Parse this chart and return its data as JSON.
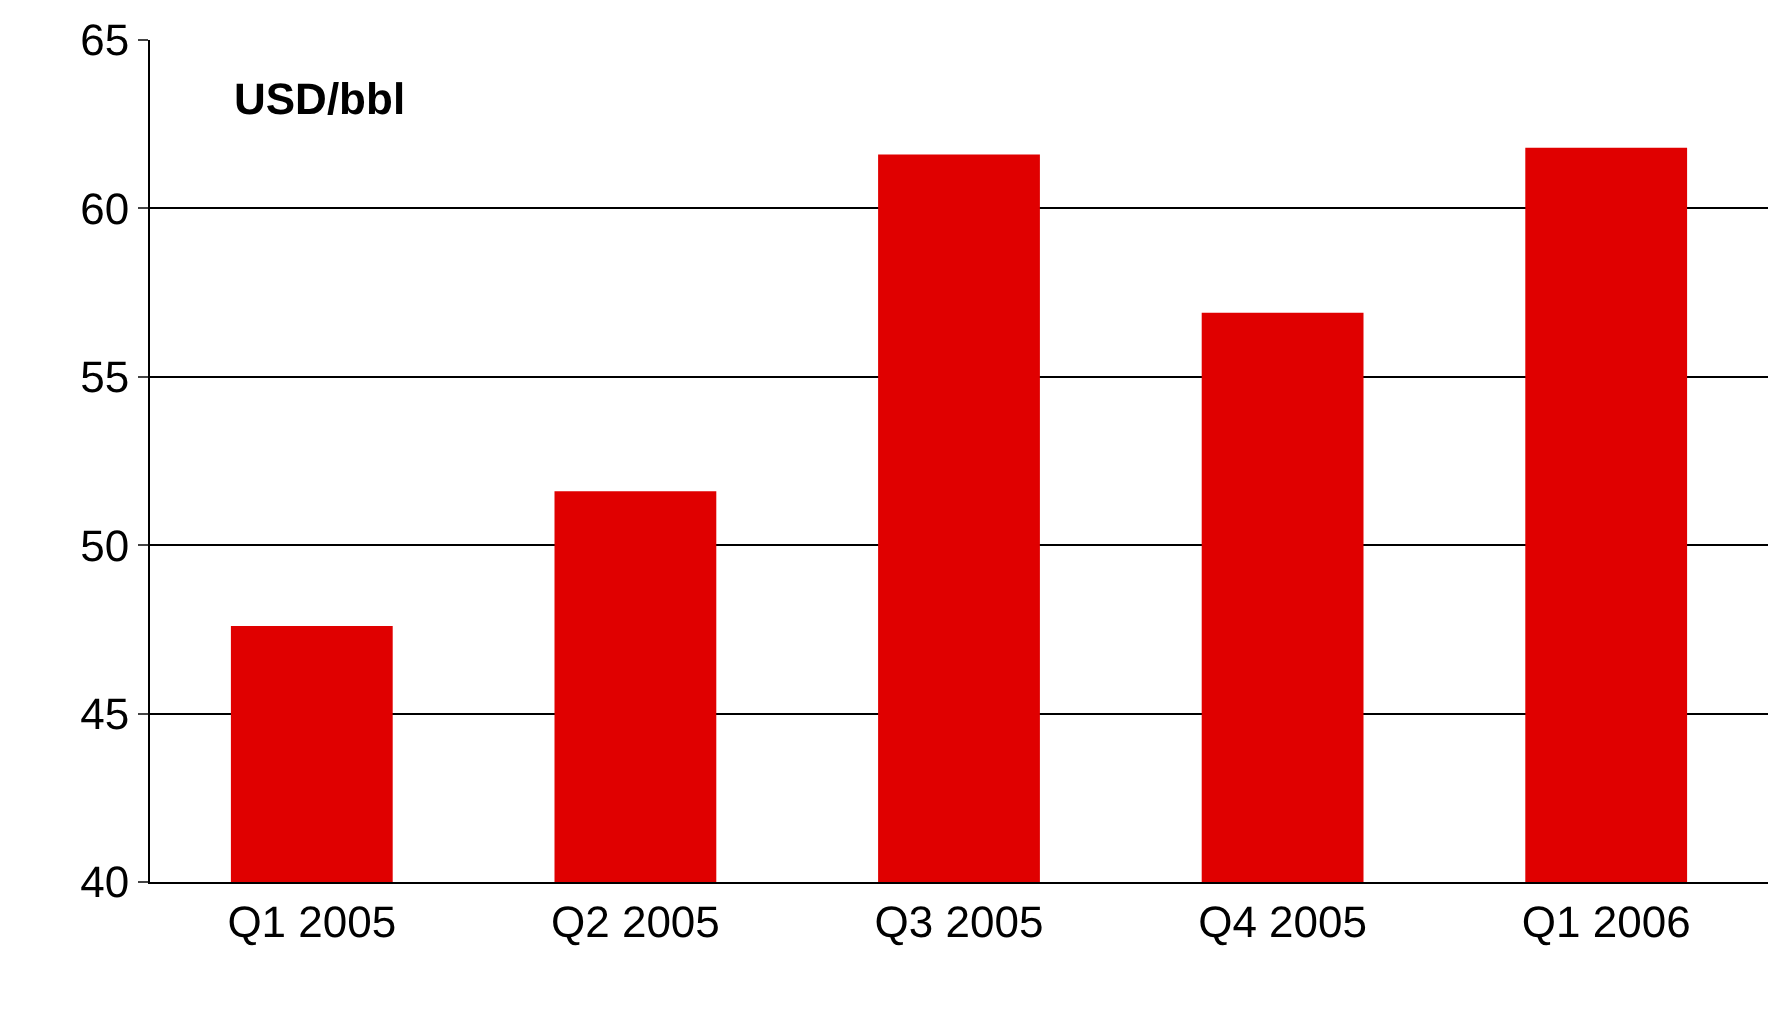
{
  "chart_data": {
    "type": "bar",
    "ylabel": "USD/bbl",
    "categories": [
      "Q1 2005",
      "Q2 2005",
      "Q3 2005",
      "Q4 2005",
      "Q1 2006"
    ],
    "values": [
      47.6,
      51.6,
      61.6,
      56.9,
      61.8
    ],
    "color": "#e00000",
    "ylim": [
      40,
      65
    ],
    "yticks": [
      40,
      45,
      50,
      55,
      60,
      65
    ],
    "grid": "y"
  }
}
